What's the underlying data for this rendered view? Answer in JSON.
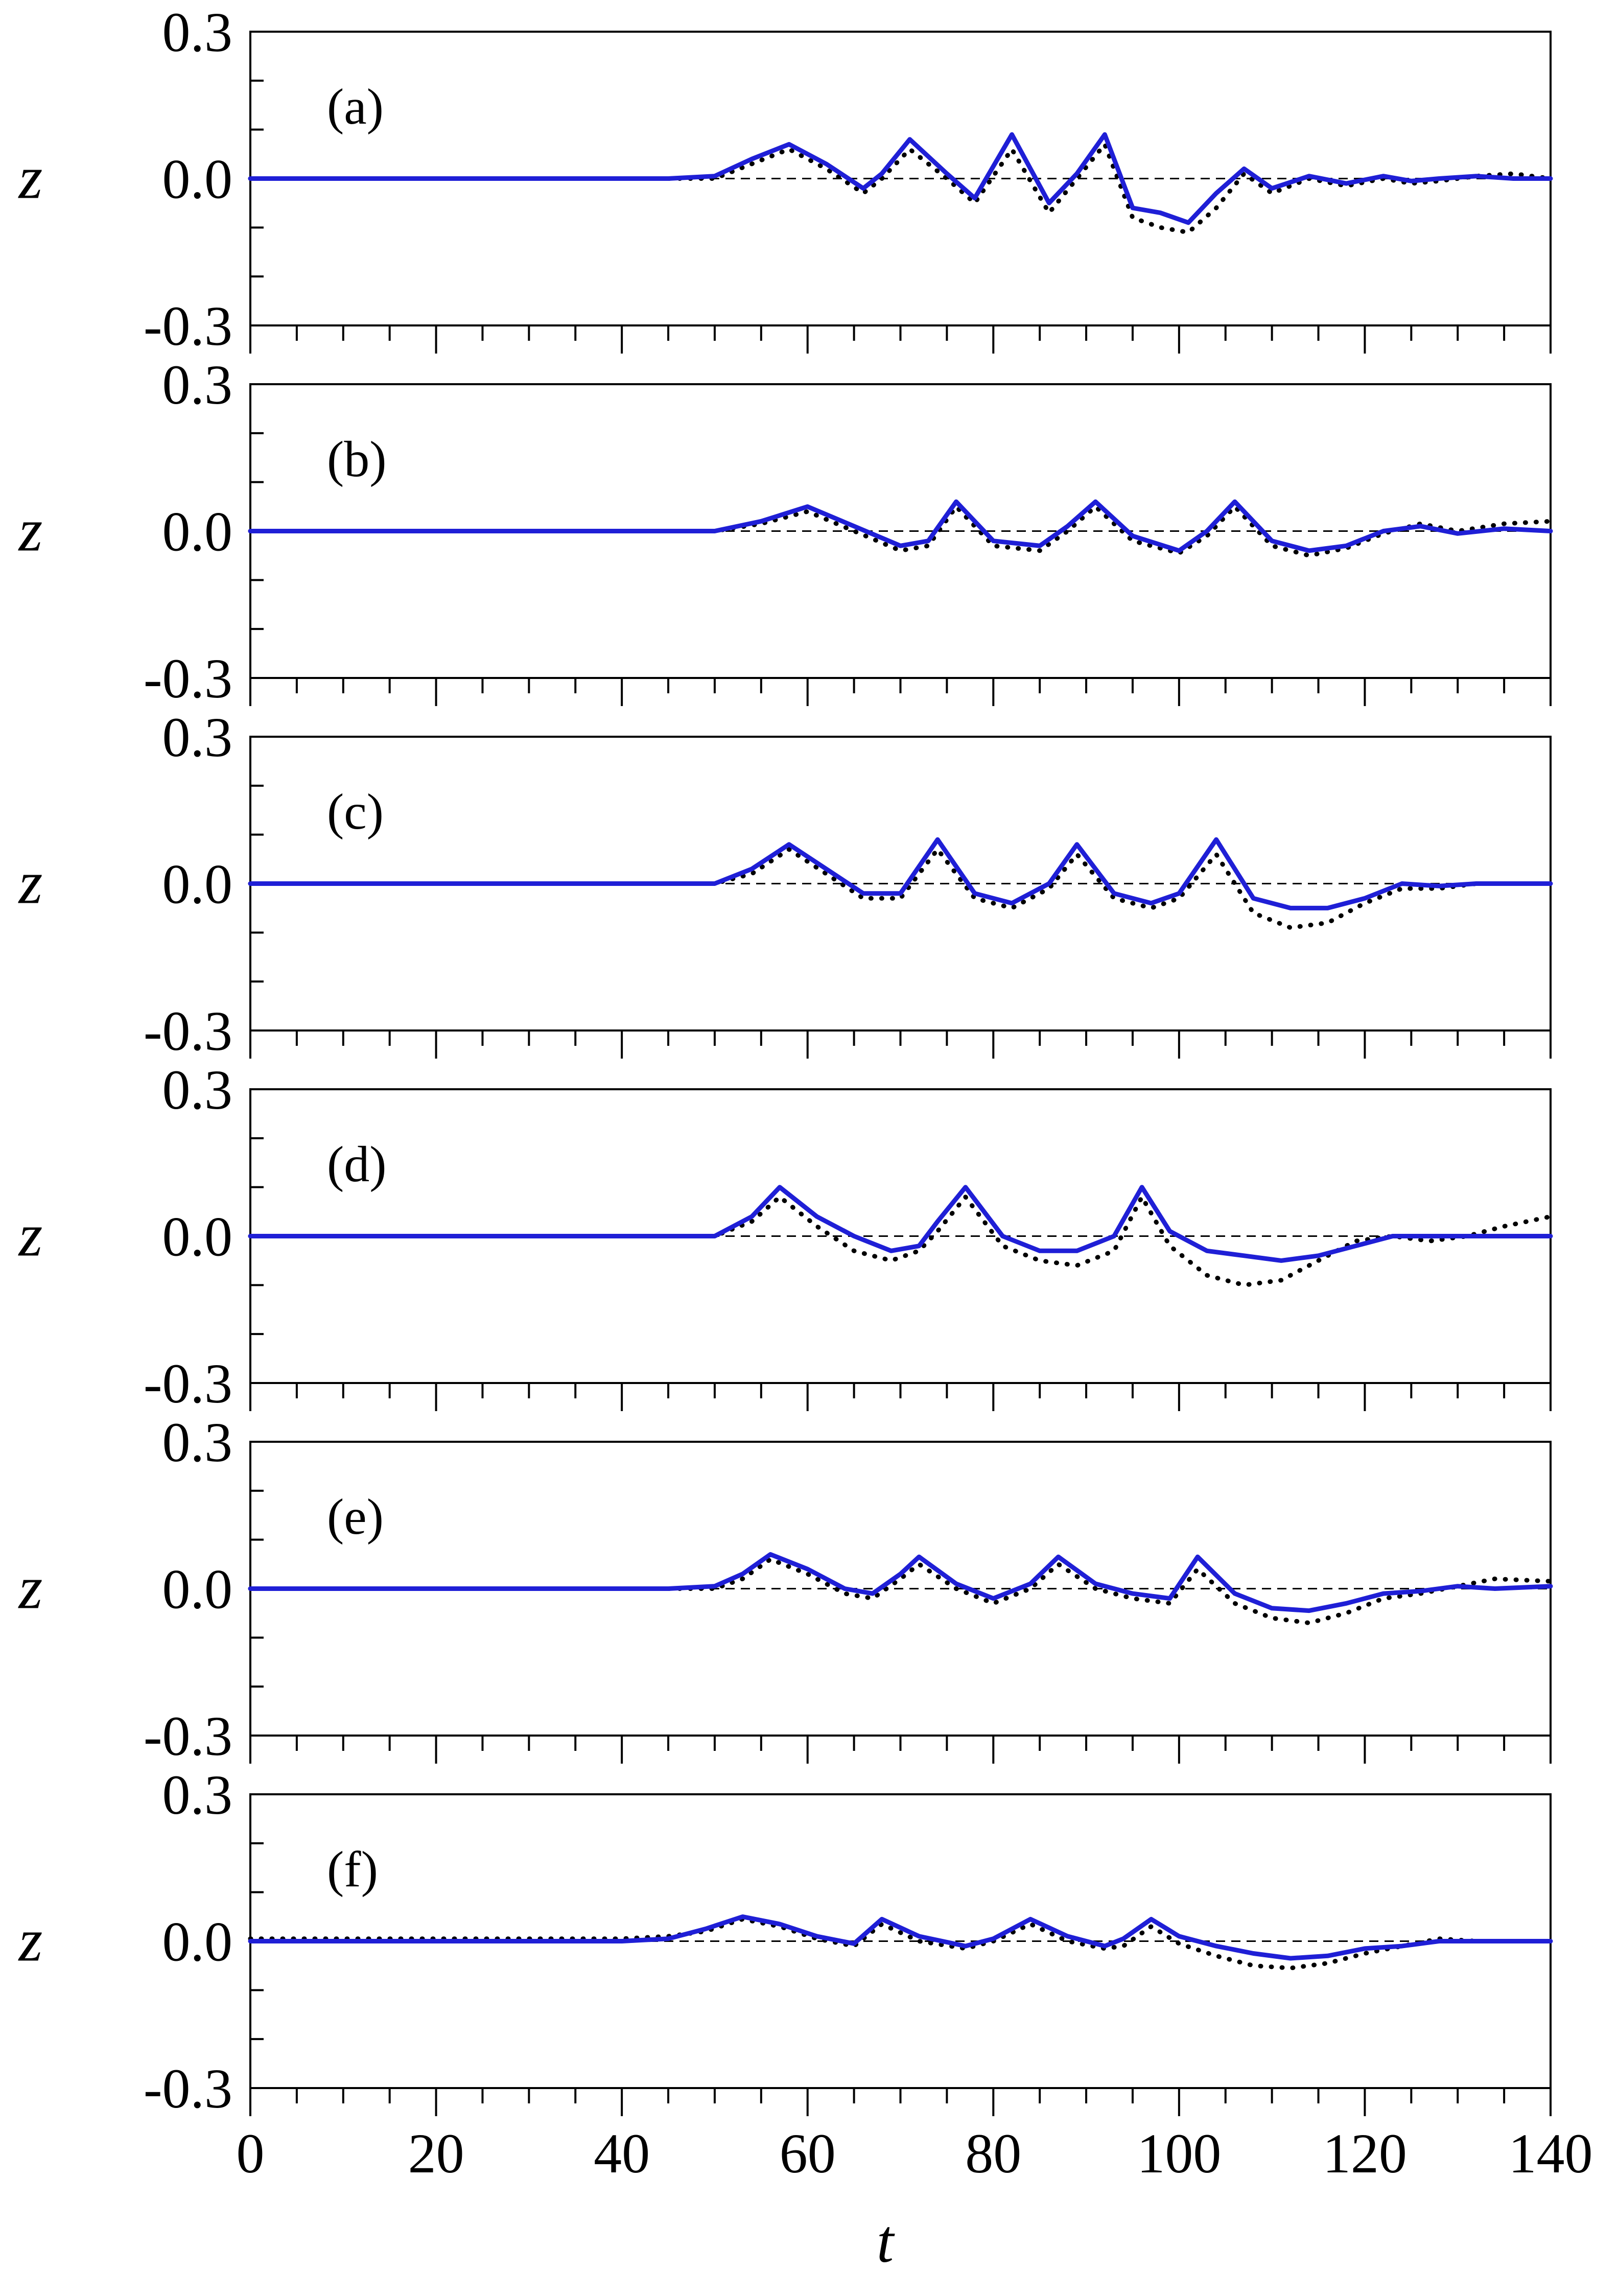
{
  "chart_data": [
    {
      "type": "line",
      "panel_label": "(a)",
      "ylabel": "z",
      "xlim": [
        0,
        140
      ],
      "ylim": [
        -0.3,
        0.3
      ],
      "yticks": [
        "0.3",
        "0.0",
        "-0.3"
      ],
      "series": [
        {
          "style": "solid",
          "color": "#1f1fd6",
          "x": [
            0,
            45,
            50,
            54,
            58,
            62,
            66,
            68,
            71,
            75,
            78,
            82,
            86,
            89,
            92,
            95,
            98,
            101,
            104,
            107,
            110,
            114,
            118,
            122,
            125,
            128,
            132,
            136,
            140
          ],
          "y": [
            0,
            0,
            0.005,
            0.04,
            0.07,
            0.03,
            -0.02,
            0.01,
            0.08,
            0.01,
            -0.04,
            0.09,
            -0.05,
            0.01,
            0.09,
            -0.06,
            -0.07,
            -0.09,
            -0.03,
            0.02,
            -0.02,
            0.005,
            -0.01,
            0.005,
            -0.005,
            0,
            0.005,
            0,
            0
          ]
        },
        {
          "style": "dotted",
          "color": "#000000",
          "x": [
            0,
            45,
            50,
            54,
            58,
            62,
            66,
            68,
            71,
            75,
            78,
            82,
            86,
            89,
            92,
            95,
            98,
            101,
            104,
            107,
            110,
            114,
            118,
            122,
            125,
            128,
            132,
            136,
            140
          ],
          "y": [
            0,
            0,
            0,
            0.03,
            0.06,
            0.02,
            -0.03,
            0,
            0.06,
            0,
            -0.05,
            0.06,
            -0.07,
            0,
            0.07,
            -0.08,
            -0.1,
            -0.11,
            -0.06,
            0.01,
            -0.03,
            0,
            -0.015,
            0,
            -0.01,
            -0.005,
            0.005,
            0.01,
            0
          ]
        }
      ]
    },
    {
      "type": "line",
      "panel_label": "(b)",
      "ylabel": "z",
      "xlim": [
        0,
        140
      ],
      "ylim": [
        -0.3,
        0.3
      ],
      "yticks": [
        "0.3",
        "0.0",
        "-0.3"
      ],
      "series": [
        {
          "style": "solid",
          "color": "#1f1fd6",
          "x": [
            0,
            50,
            55,
            60,
            65,
            70,
            73,
            76,
            80,
            85,
            88,
            91,
            95,
            100,
            103,
            106,
            110,
            114,
            118,
            122,
            126,
            130,
            135,
            140
          ],
          "y": [
            0,
            0,
            0.02,
            0.05,
            0.01,
            -0.03,
            -0.02,
            0.06,
            -0.02,
            -0.03,
            0.01,
            0.06,
            -0.01,
            -0.04,
            0,
            0.06,
            -0.02,
            -0.04,
            -0.03,
            0,
            0.01,
            -0.005,
            0.005,
            0
          ]
        },
        {
          "style": "dotted",
          "color": "#000000",
          "x": [
            0,
            50,
            55,
            60,
            65,
            70,
            73,
            76,
            80,
            85,
            88,
            91,
            95,
            100,
            103,
            106,
            110,
            114,
            118,
            122,
            126,
            130,
            135,
            140
          ],
          "y": [
            0,
            0,
            0.015,
            0.04,
            0,
            -0.04,
            -0.03,
            0.05,
            -0.03,
            -0.04,
            0,
            0.05,
            -0.02,
            -0.045,
            -0.01,
            0.05,
            -0.03,
            -0.05,
            -0.035,
            -0.005,
            0.015,
            0,
            0.015,
            0.02
          ]
        }
      ]
    },
    {
      "type": "line",
      "panel_label": "(c)",
      "ylabel": "z",
      "xlim": [
        0,
        140
      ],
      "ylim": [
        -0.3,
        0.3
      ],
      "yticks": [
        "0.3",
        "0.0",
        "-0.3"
      ],
      "series": [
        {
          "style": "solid",
          "color": "#1f1fd6",
          "x": [
            0,
            50,
            54,
            58,
            62,
            66,
            70,
            74,
            78,
            82,
            86,
            89,
            93,
            97,
            100,
            104,
            108,
            112,
            116,
            120,
            124,
            128,
            132,
            136,
            140
          ],
          "y": [
            0,
            0,
            0.03,
            0.08,
            0.03,
            -0.02,
            -0.02,
            0.09,
            -0.02,
            -0.04,
            0,
            0.08,
            -0.02,
            -0.04,
            -0.02,
            0.09,
            -0.03,
            -0.05,
            -0.05,
            -0.03,
            0,
            -0.005,
            0,
            0,
            0
          ]
        },
        {
          "style": "dotted",
          "color": "#000000",
          "x": [
            0,
            50,
            54,
            58,
            62,
            66,
            70,
            74,
            78,
            82,
            86,
            89,
            93,
            97,
            100,
            104,
            108,
            112,
            116,
            120,
            124,
            128,
            132,
            136,
            140
          ],
          "y": [
            0,
            0,
            0.02,
            0.07,
            0.02,
            -0.03,
            -0.03,
            0.07,
            -0.03,
            -0.05,
            -0.01,
            0.06,
            -0.03,
            -0.05,
            -0.03,
            0.06,
            -0.06,
            -0.09,
            -0.08,
            -0.04,
            -0.01,
            -0.01,
            0,
            0,
            0
          ]
        }
      ]
    },
    {
      "type": "line",
      "panel_label": "(d)",
      "ylabel": "z",
      "xlim": [
        0,
        140
      ],
      "ylim": [
        -0.3,
        0.3
      ],
      "yticks": [
        "0.3",
        "0.0",
        "-0.3"
      ],
      "series": [
        {
          "style": "solid",
          "color": "#1f1fd6",
          "x": [
            0,
            50,
            54,
            57,
            61,
            65,
            69,
            72,
            74,
            77,
            81,
            85,
            89,
            93,
            96,
            99,
            103,
            107,
            111,
            115,
            119,
            123,
            127,
            131,
            135,
            140
          ],
          "y": [
            0,
            0,
            0.04,
            0.1,
            0.04,
            0,
            -0.03,
            -0.02,
            0.03,
            0.1,
            0,
            -0.03,
            -0.03,
            0,
            0.1,
            0.01,
            -0.03,
            -0.04,
            -0.05,
            -0.04,
            -0.02,
            0,
            0,
            0,
            0,
            0
          ]
        },
        {
          "style": "dotted",
          "color": "#000000",
          "x": [
            0,
            50,
            54,
            57,
            61,
            65,
            69,
            72,
            74,
            77,
            81,
            85,
            89,
            93,
            96,
            99,
            103,
            107,
            111,
            115,
            119,
            123,
            127,
            131,
            135,
            140
          ],
          "y": [
            0,
            0,
            0.03,
            0.08,
            0.02,
            -0.03,
            -0.05,
            -0.03,
            0.01,
            0.08,
            -0.02,
            -0.05,
            -0.06,
            -0.03,
            0.08,
            -0.02,
            -0.08,
            -0.1,
            -0.09,
            -0.05,
            -0.01,
            0,
            -0.01,
            0,
            0.02,
            0.04
          ]
        }
      ]
    },
    {
      "type": "line",
      "panel_label": "(e)",
      "ylabel": "z",
      "xlim": [
        0,
        140
      ],
      "ylim": [
        -0.3,
        0.3
      ],
      "yticks": [
        "0.3",
        "0.0",
        "-0.3"
      ],
      "series": [
        {
          "style": "solid",
          "color": "#1f1fd6",
          "x": [
            0,
            45,
            50,
            53,
            56,
            60,
            64,
            67,
            70,
            72,
            76,
            80,
            84,
            87,
            91,
            95,
            99,
            102,
            106,
            110,
            114,
            118,
            122,
            126,
            130,
            134,
            140
          ],
          "y": [
            0,
            0,
            0.005,
            0.03,
            0.07,
            0.04,
            0,
            -0.01,
            0.03,
            0.065,
            0.01,
            -0.02,
            0.01,
            0.065,
            0.01,
            -0.01,
            -0.02,
            0.065,
            -0.01,
            -0.04,
            -0.045,
            -0.03,
            -0.01,
            -0.005,
            0.005,
            0,
            0.005
          ]
        },
        {
          "style": "dotted",
          "color": "#000000",
          "x": [
            0,
            45,
            50,
            53,
            56,
            60,
            64,
            67,
            70,
            72,
            76,
            80,
            84,
            87,
            91,
            95,
            99,
            102,
            106,
            110,
            114,
            118,
            122,
            126,
            130,
            134,
            140
          ],
          "y": [
            0,
            0,
            0,
            0.02,
            0.06,
            0.03,
            -0.01,
            -0.02,
            0.02,
            0.05,
            0,
            -0.03,
            0,
            0.05,
            0,
            -0.02,
            -0.03,
            0.04,
            -0.03,
            -0.06,
            -0.07,
            -0.05,
            -0.02,
            -0.01,
            0.005,
            0.02,
            0.015
          ]
        }
      ]
    },
    {
      "type": "line",
      "panel_label": "(f)",
      "ylabel": "z",
      "xlim": [
        0,
        140
      ],
      "ylim": [
        -0.3,
        0.3
      ],
      "yticks": [
        "0.3",
        "0.0",
        "-0.3"
      ],
      "series": [
        {
          "style": "solid",
          "color": "#1f1fd6",
          "x": [
            0,
            40,
            45,
            49,
            53,
            57,
            61,
            65,
            68,
            72,
            77,
            80,
            84,
            88,
            92,
            94,
            97,
            100,
            104,
            108,
            112,
            116,
            120,
            124,
            128,
            132,
            140
          ],
          "y": [
            0,
            0,
            0.005,
            0.025,
            0.05,
            0.035,
            0.01,
            -0.005,
            0.045,
            0.01,
            -0.01,
            0.005,
            0.045,
            0.01,
            -0.01,
            0.005,
            0.045,
            0.01,
            -0.01,
            -0.025,
            -0.035,
            -0.03,
            -0.015,
            -0.01,
            0,
            0,
            0
          ]
        },
        {
          "style": "dotted",
          "color": "#000000",
          "x": [
            0,
            40,
            45,
            49,
            53,
            57,
            61,
            65,
            68,
            72,
            77,
            80,
            84,
            88,
            92,
            94,
            97,
            100,
            104,
            108,
            112,
            116,
            120,
            124,
            128,
            132,
            140
          ],
          "y": [
            0.005,
            0.005,
            0.01,
            0.02,
            0.045,
            0.03,
            0.005,
            -0.01,
            0.035,
            0,
            -0.015,
            0,
            0.035,
            0,
            -0.015,
            -0.01,
            0.03,
            -0.005,
            -0.03,
            -0.05,
            -0.055,
            -0.045,
            -0.025,
            -0.01,
            0.005,
            0,
            0
          ]
        }
      ]
    }
  ],
  "xaxis": {
    "label": "t",
    "ticks": [
      0,
      20,
      40,
      60,
      80,
      100,
      120,
      140
    ]
  },
  "colors": {
    "solid": "#1f1fd6",
    "dotted": "#000000",
    "zero_line": "#000000"
  }
}
